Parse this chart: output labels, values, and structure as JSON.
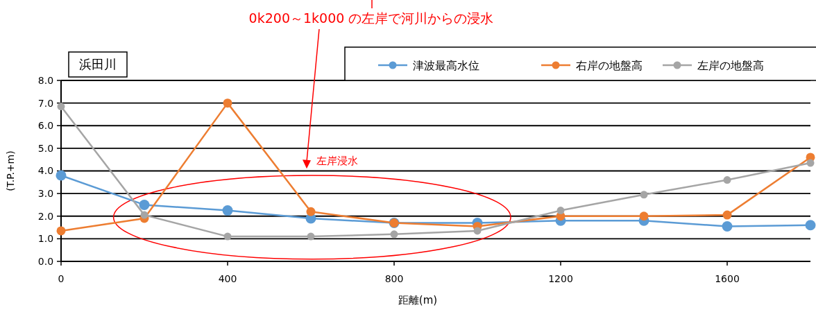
{
  "chart_data": {
    "type": "line",
    "title": "浜田川",
    "xlabel": "距離(m)",
    "ylabel": "(T.P.+m)",
    "annotations": [
      "0k200～1k000 の左岸で河川からの浸水",
      "左岸浸水"
    ],
    "x": [
      0,
      200,
      400,
      600,
      800,
      1000,
      1200,
      1400,
      1600,
      1800
    ],
    "series": [
      {
        "name": "津波最高水位",
        "color": "#5b9bd5",
        "values": [
          3.8,
          2.5,
          2.25,
          1.9,
          1.7,
          1.7,
          1.8,
          1.8,
          1.55,
          1.6
        ]
      },
      {
        "name": "右岸の地盤高",
        "color": "#ed7d31",
        "values": [
          1.35,
          1.9,
          7.0,
          2.2,
          1.7,
          1.55,
          2.0,
          2.0,
          2.05,
          4.6
        ]
      },
      {
        "name": "左岸の地盤高",
        "color": "#a5a5a5",
        "values": [
          6.85,
          2.05,
          1.1,
          1.1,
          1.2,
          1.35,
          2.25,
          2.95,
          3.6,
          4.35
        ]
      }
    ],
    "xlim": [
      0,
      1800
    ],
    "xticks": [
      0,
      400,
      800,
      1200,
      1600
    ],
    "ylim": [
      0,
      8
    ],
    "yticks": [
      {
        "value": 0,
        "label": "0.0"
      },
      {
        "value": 1,
        "label": "1.0"
      },
      {
        "value": 2,
        "label": "2.0"
      },
      {
        "value": 3,
        "label": "3.0"
      },
      {
        "value": 4,
        "label": "4.0"
      },
      {
        "value": 5,
        "label": "5.0"
      },
      {
        "value": 6,
        "label": "6.0"
      },
      {
        "value": 7,
        "label": "7.0"
      },
      {
        "value": 8,
        "label": "8.0"
      }
    ],
    "grid": "y",
    "legend": "top right",
    "marker": "circle",
    "line_style": "solid"
  }
}
